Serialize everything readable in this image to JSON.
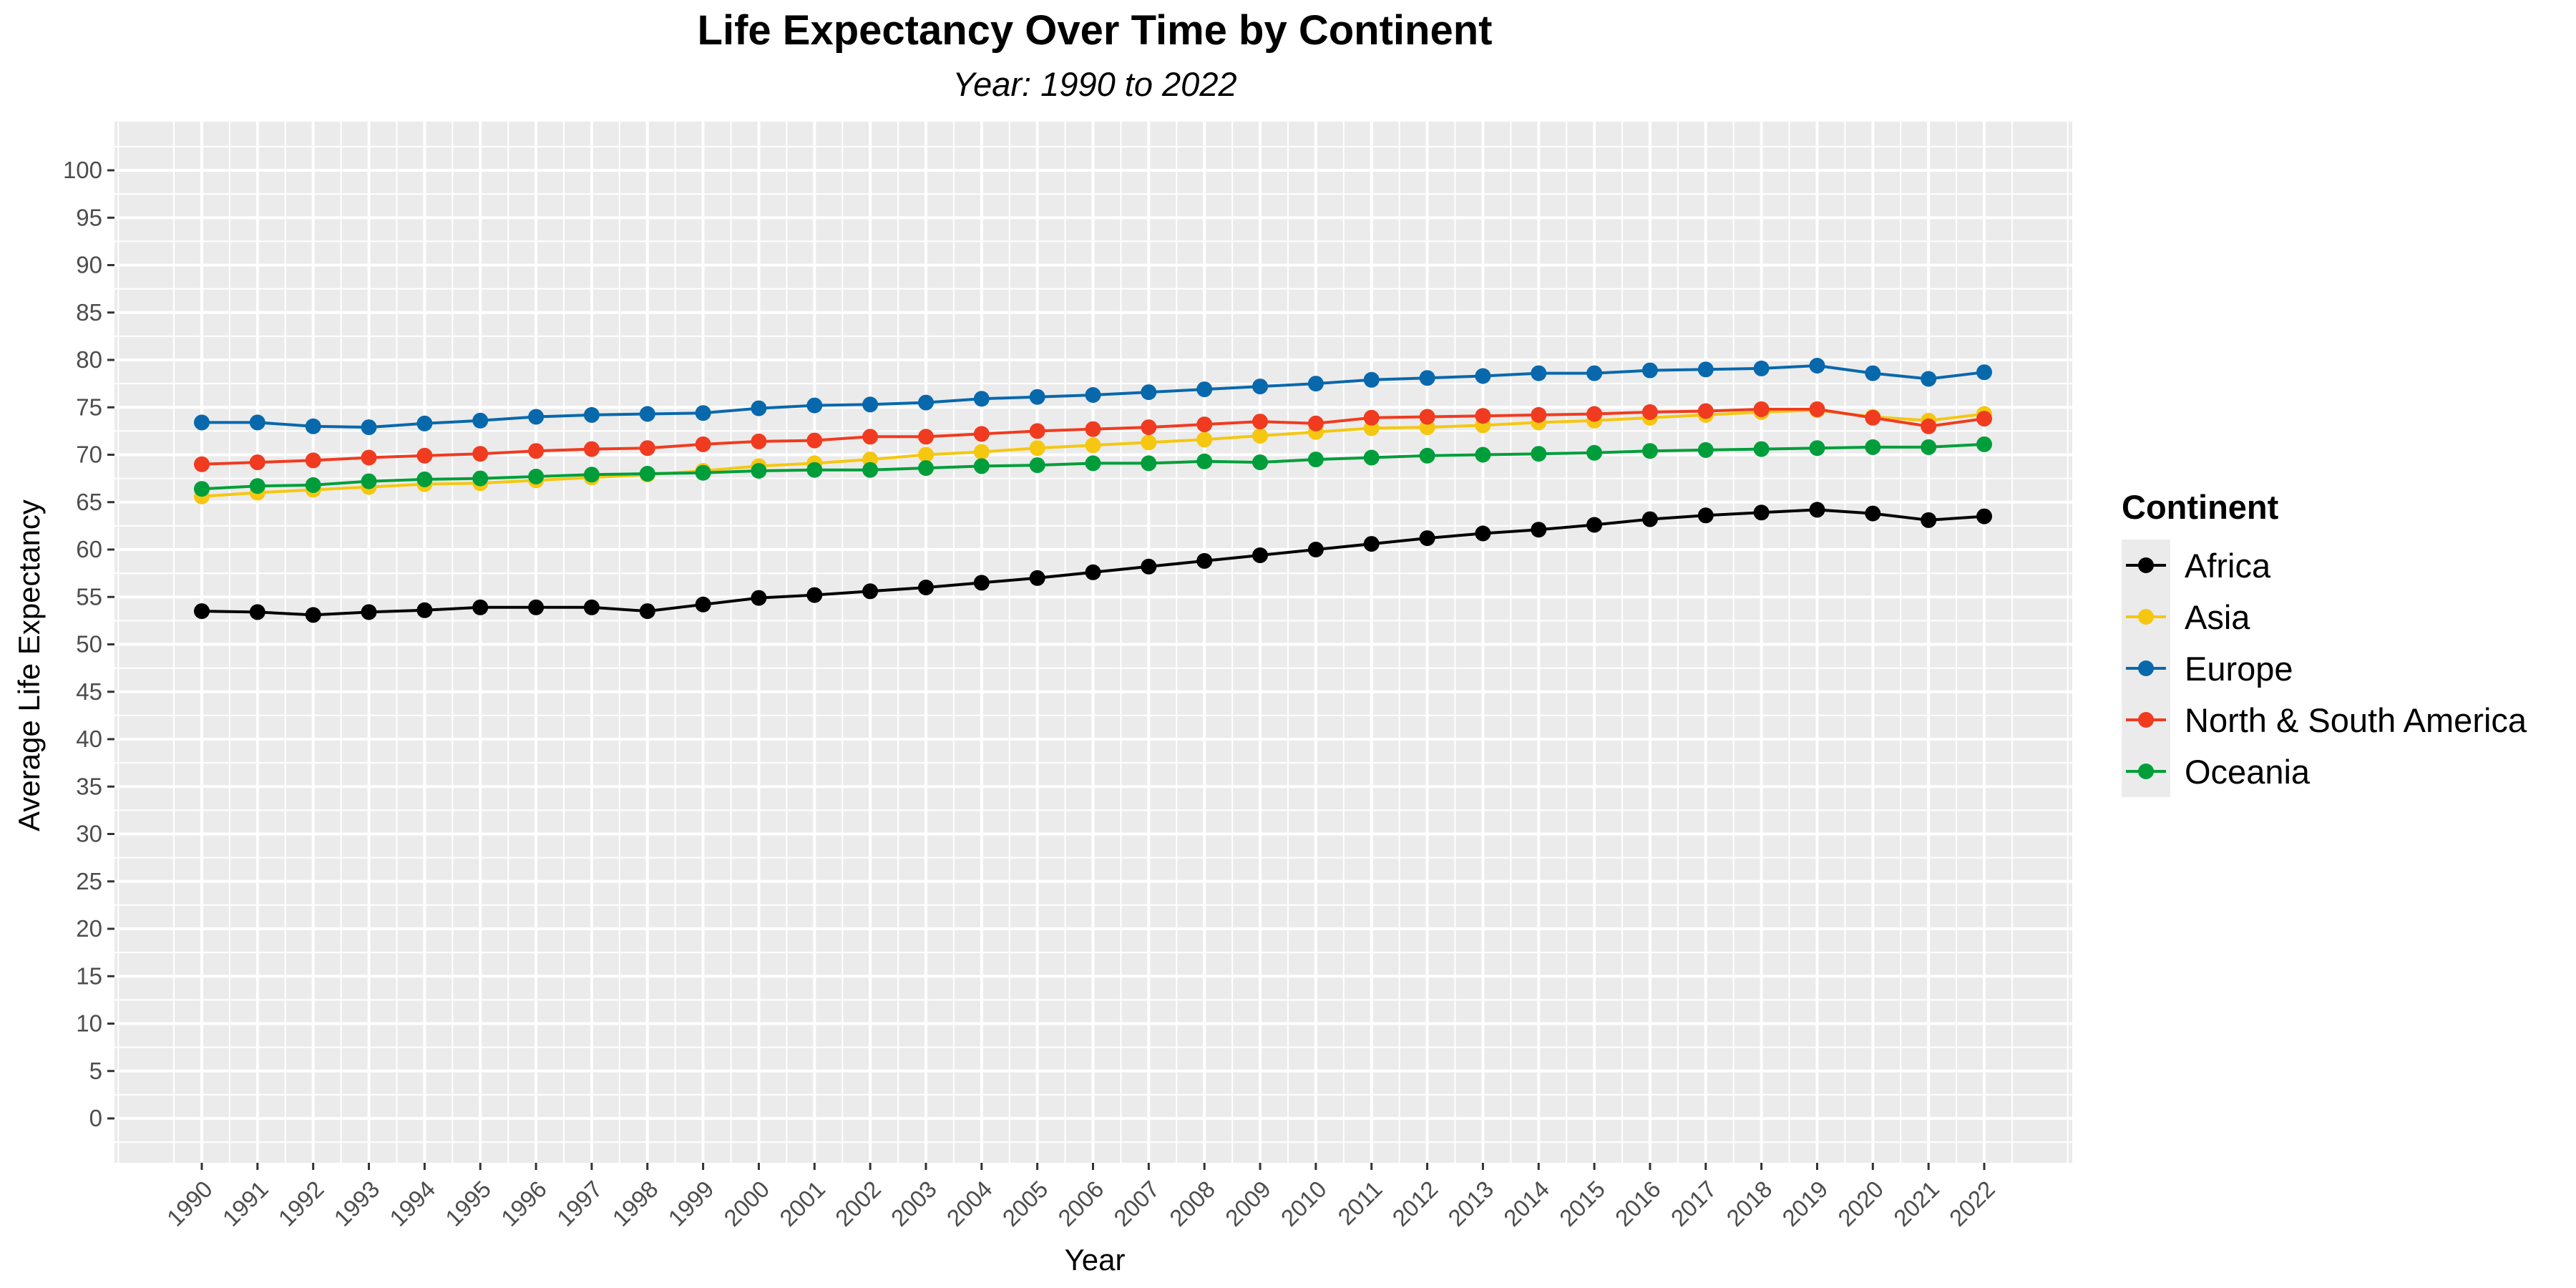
{
  "chart_data": {
    "type": "line",
    "title": "Life Expectancy Over Time by Continent",
    "subtitle": "Year: 1990 to 2022",
    "xlabel": "Year",
    "ylabel": "Average Life Expectancy",
    "ylim": [
      0,
      100
    ],
    "yticks": [
      "0",
      "5",
      "10",
      "15",
      "20",
      "25",
      "30",
      "35",
      "40",
      "45",
      "50",
      "55",
      "60",
      "65",
      "70",
      "75",
      "80",
      "85",
      "90",
      "95",
      "100"
    ],
    "x": [
      "1990",
      "1991",
      "1992",
      "1993",
      "1994",
      "1995",
      "1996",
      "1997",
      "1998",
      "1999",
      "2000",
      "2001",
      "2002",
      "2003",
      "2004",
      "2005",
      "2006",
      "2007",
      "2008",
      "2009",
      "2010",
      "2011",
      "2012",
      "2013",
      "2014",
      "2015",
      "2016",
      "2017",
      "2018",
      "2019",
      "2020",
      "2021",
      "2022"
    ],
    "grid": true,
    "legend": {
      "title": "Continent",
      "position": "right"
    },
    "series": [
      {
        "name": "Africa",
        "color": "#000000",
        "values": [
          53.5,
          53.4,
          53.1,
          53.4,
          53.6,
          53.9,
          53.9,
          53.9,
          53.5,
          54.2,
          54.9,
          55.2,
          55.6,
          56.0,
          56.5,
          57.0,
          57.6,
          58.2,
          58.8,
          59.4,
          60.0,
          60.6,
          61.2,
          61.7,
          62.1,
          62.6,
          63.2,
          63.6,
          63.9,
          64.2,
          63.8,
          63.1,
          63.5
        ]
      },
      {
        "name": "Asia",
        "color": "#F5C710",
        "values": [
          65.6,
          66.0,
          66.3,
          66.6,
          66.9,
          67.0,
          67.3,
          67.6,
          67.9,
          68.3,
          68.8,
          69.1,
          69.5,
          70.0,
          70.3,
          70.7,
          71.0,
          71.3,
          71.6,
          72.0,
          72.4,
          72.8,
          72.9,
          73.1,
          73.4,
          73.6,
          73.9,
          74.2,
          74.5,
          74.7,
          74.0,
          73.6,
          74.3
        ]
      },
      {
        "name": "Europe",
        "color": "#0868AC",
        "values": [
          73.4,
          73.4,
          73.0,
          72.9,
          73.3,
          73.6,
          74.0,
          74.2,
          74.3,
          74.4,
          74.9,
          75.2,
          75.3,
          75.5,
          75.9,
          76.1,
          76.3,
          76.6,
          76.9,
          77.2,
          77.5,
          77.9,
          78.1,
          78.3,
          78.6,
          78.6,
          78.9,
          79.0,
          79.1,
          79.4,
          78.6,
          78.0,
          78.7
        ]
      },
      {
        "name": "North & South America",
        "color": "#F03B20",
        "values": [
          69.0,
          69.2,
          69.4,
          69.7,
          69.9,
          70.1,
          70.4,
          70.6,
          70.7,
          71.1,
          71.4,
          71.5,
          71.9,
          71.9,
          72.2,
          72.5,
          72.7,
          72.9,
          73.2,
          73.5,
          73.3,
          73.9,
          74.0,
          74.1,
          74.2,
          74.3,
          74.5,
          74.6,
          74.8,
          74.8,
          73.9,
          73.0,
          73.8
        ]
      },
      {
        "name": "Oceania",
        "color": "#009E3A",
        "values": [
          66.4,
          66.7,
          66.8,
          67.2,
          67.4,
          67.5,
          67.7,
          67.9,
          68.0,
          68.1,
          68.3,
          68.4,
          68.4,
          68.6,
          68.8,
          68.9,
          69.1,
          69.1,
          69.3,
          69.2,
          69.5,
          69.7,
          69.9,
          70.0,
          70.1,
          70.2,
          70.4,
          70.5,
          70.6,
          70.7,
          70.8,
          70.8,
          71.1
        ]
      }
    ]
  }
}
